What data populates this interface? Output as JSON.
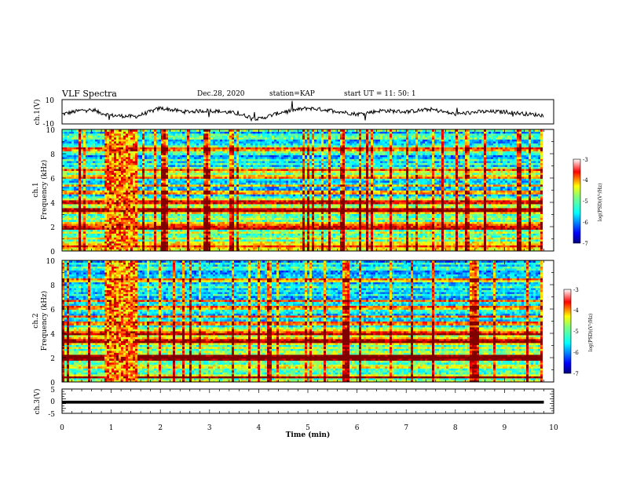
{
  "header": {
    "title": "VLF Spectra",
    "date": "Dec.28, 2020",
    "station": "station=KAP",
    "start": "start UT =  11: 50: 1"
  },
  "chart_data": [
    {
      "type": "line",
      "panel": "ch1",
      "ylabel": "ch.1(V)",
      "ylim": [
        -10,
        10
      ],
      "yticks": [
        "10",
        "-10"
      ],
      "xlim": [
        0,
        10
      ],
      "x": [
        0,
        0.5,
        1.0,
        1.5,
        2.0,
        2.5,
        3.0,
        3.5,
        4.0,
        4.5,
        5.0,
        5.5,
        6.0,
        6.5,
        7.0,
        7.5,
        8.0,
        8.5,
        9.0,
        9.5,
        9.8
      ],
      "y": [
        -2,
        2,
        -3,
        -4,
        3,
        0,
        1,
        -1,
        -6,
        0,
        3,
        1,
        -2,
        1,
        0,
        2,
        -2,
        0,
        0,
        -2,
        -3
      ],
      "series_color": "#000000"
    },
    {
      "type": "heatmap",
      "panel": "ch1",
      "ylabel": "ch.1\nFrequency (kHz)",
      "ylim": [
        0,
        10
      ],
      "yticks": [
        "0",
        "2",
        "4",
        "6",
        "8",
        "10"
      ],
      "xlim": [
        0,
        10
      ],
      "data_extent_x": [
        0,
        9.8
      ],
      "colorbar": {
        "label": "log(PSD)(V²/Hz)",
        "range": [
          -7,
          -3
        ],
        "ticks": [
          "-3",
          "-4",
          "-5",
          "-6",
          "-7"
        ]
      },
      "burst_interval_min": [
        0.85,
        1.5
      ],
      "strong_lines_khz": [
        0.4,
        1.9,
        2.2,
        3.4,
        4.0,
        4.8,
        5.4,
        6.1,
        6.6,
        8.4
      ]
    },
    {
      "type": "heatmap",
      "panel": "ch2",
      "ylabel": "ch.2\nFrequency (kHz)",
      "ylim": [
        0,
        10
      ],
      "yticks": [
        "0",
        "2",
        "4",
        "6",
        "8",
        "10"
      ],
      "xlim": [
        0,
        10
      ],
      "data_extent_x": [
        0,
        9.8
      ],
      "colorbar": {
        "label": "log(PSD)(V²/Hz)",
        "range": [
          -7,
          -3
        ],
        "ticks": [
          "-3",
          "-4",
          "-5",
          "-6",
          "-7"
        ]
      },
      "burst_interval_min": [
        0.85,
        1.5
      ],
      "strong_lines_khz": [
        0.4,
        1.9,
        2.1,
        3.4,
        4.0,
        4.8,
        5.4,
        6.1,
        6.7,
        8.4
      ]
    },
    {
      "type": "line",
      "panel": "ch3",
      "ylabel": "ch.3(V)",
      "ylim": [
        -5,
        5
      ],
      "yticks": [
        "5",
        "0",
        "-5"
      ],
      "xlim": [
        0,
        10
      ],
      "xticks": [
        "0",
        "1",
        "2",
        "3",
        "4",
        "5",
        "6",
        "7",
        "8",
        "9",
        "10"
      ],
      "xlabel": "Time (min)",
      "band": [
        -1.0,
        0.2
      ],
      "x_extent": [
        0,
        9.8
      ]
    }
  ],
  "colors": {
    "colormap": [
      "#00007f",
      "#0000ff",
      "#007fff",
      "#00ffff",
      "#7fff7f",
      "#ffff00",
      "#ff7f00",
      "#ff0000",
      "#7f0000"
    ]
  }
}
